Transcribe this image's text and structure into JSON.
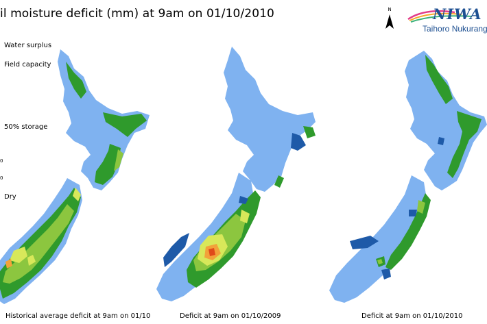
{
  "title": "il moisture deficit (mm) at  9am on 01/10/2010",
  "legend": {
    "labels": [
      "Water surplus",
      "Field capacity",
      "50% storage",
      "Dry"
    ],
    "ticks": [
      "0",
      "0"
    ]
  },
  "maps": [
    {
      "caption": "Historical average deficit at 9am on 01/10"
    },
    {
      "caption": "Deficit at  9am on 01/10/2009"
    },
    {
      "caption": "Deficit at  9am on 01/10/2010"
    }
  ],
  "north_arrow": {
    "letter": "N"
  },
  "logo": {
    "name": "NIWA",
    "subtitle": "Taihoro Nukurangi"
  },
  "colors": {
    "surplus": "#1e5aa8",
    "field_capacity": "#7fb2f0",
    "moist": "#2f9a2c",
    "mid": "#8cc63f",
    "drier": "#d8e85a",
    "dry": "#f2a23a",
    "very_dry": "#e04a1a"
  }
}
